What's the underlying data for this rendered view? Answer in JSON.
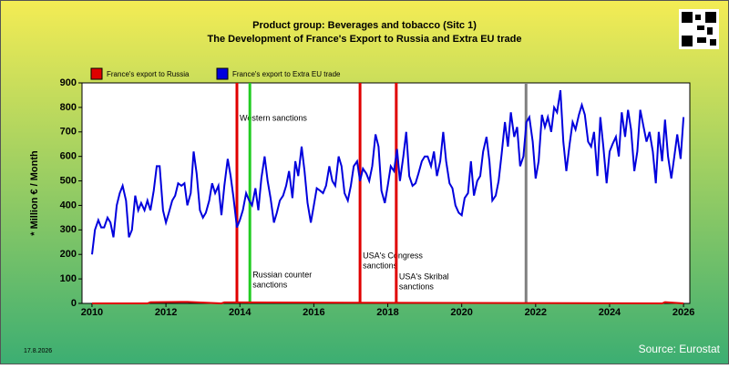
{
  "chart_data": {
    "type": "line",
    "title": "Product group: Beverages and tobacco (Sitc 1)",
    "subtitle": "The Development of France's Export to  Russia and Extra EU trade",
    "y_label": "* Million € / Month",
    "date": "17.8.2026",
    "source": "Source: Eurostat",
    "xlim": [
      2009.73,
      2026.17
    ],
    "ylim": [
      0,
      900
    ],
    "xticks": [
      2010,
      2012,
      2014,
      2016,
      2018,
      2020,
      2022,
      2024,
      2026
    ],
    "yticks": [
      0,
      100,
      200,
      300,
      400,
      500,
      600,
      700,
      800,
      900
    ],
    "events": [
      {
        "x": 2013.92,
        "color": "#e00000",
        "label": [
          "Western sanctions"
        ]
      },
      {
        "x": 2014.27,
        "color": "#22cc22",
        "label": [
          "Russian counter",
          "sanctions"
        ]
      },
      {
        "x": 2017.25,
        "color": "#e00000",
        "label": [
          "USA's Congress",
          "sanctions"
        ]
      },
      {
        "x": 2018.23,
        "color": "#e00000",
        "label": [
          "USA's Skribal",
          "sanctions"
        ]
      },
      {
        "x": 2021.74,
        "color": "#808080"
      }
    ],
    "series": [
      {
        "name": "France's export to Russia",
        "color": "#e00000",
        "x": [
          2010,
          2011.5,
          2011.58,
          2012.42,
          2012.58,
          2013.5,
          2013.58,
          2025.42,
          2025.5,
          2026
        ],
        "values": [
          0,
          0,
          5,
          6,
          6,
          0,
          4,
          0,
          5,
          0
        ]
      },
      {
        "name": "France's export to Extra EU trade",
        "color": "#0000dd",
        "x": [
          2010,
          2010.08,
          2010.17,
          2010.25,
          2010.33,
          2010.42,
          2010.5,
          2010.58,
          2010.67,
          2010.75,
          2010.83,
          2010.92,
          2011,
          2011.08,
          2011.17,
          2011.25,
          2011.33,
          2011.42,
          2011.5,
          2011.58,
          2011.67,
          2011.75,
          2011.83,
          2011.92,
          2012,
          2012.08,
          2012.17,
          2012.25,
          2012.33,
          2012.42,
          2012.5,
          2012.58,
          2012.67,
          2012.75,
          2012.83,
          2012.92,
          2013,
          2013.08,
          2013.17,
          2013.25,
          2013.33,
          2013.42,
          2013.5,
          2013.58,
          2013.67,
          2013.75,
          2013.83,
          2013.92,
          2014,
          2014.08,
          2014.17,
          2014.25,
          2014.33,
          2014.42,
          2014.5,
          2014.58,
          2014.67,
          2014.75,
          2014.83,
          2014.92,
          2015,
          2015.08,
          2015.17,
          2015.25,
          2015.33,
          2015.42,
          2015.5,
          2015.58,
          2015.67,
          2015.75,
          2015.83,
          2015.92,
          2016,
          2016.08,
          2016.17,
          2016.25,
          2016.33,
          2016.42,
          2016.5,
          2016.58,
          2016.67,
          2016.75,
          2016.83,
          2016.92,
          2017,
          2017.08,
          2017.17,
          2017.25,
          2017.33,
          2017.42,
          2017.5,
          2017.58,
          2017.67,
          2017.75,
          2017.83,
          2017.92,
          2018,
          2018.08,
          2018.17,
          2018.25,
          2018.33,
          2018.42,
          2018.5,
          2018.58,
          2018.67,
          2018.75,
          2018.83,
          2018.92,
          2019,
          2019.08,
          2019.17,
          2019.25,
          2019.33,
          2019.42,
          2019.5,
          2019.58,
          2019.67,
          2019.75,
          2019.83,
          2019.92,
          2020,
          2020.08,
          2020.17,
          2020.25,
          2020.33,
          2020.42,
          2020.5,
          2020.58,
          2020.67,
          2020.75,
          2020.83,
          2020.92,
          2021,
          2021.08,
          2021.17,
          2021.25,
          2021.33,
          2021.42,
          2021.5,
          2021.58,
          2021.67,
          2021.75,
          2021.83,
          2021.92,
          2022,
          2022.08,
          2022.17,
          2022.25,
          2022.33,
          2022.42,
          2022.5,
          2022.58,
          2022.67,
          2022.75,
          2022.83,
          2022.92,
          2023,
          2023.08,
          2023.17,
          2023.25,
          2023.33,
          2023.42,
          2023.5,
          2023.58,
          2023.67,
          2023.75,
          2023.83,
          2023.92,
          2024,
          2024.08,
          2024.17,
          2024.25,
          2024.33,
          2024.42,
          2024.5,
          2024.58,
          2024.67,
          2024.75,
          2024.83,
          2024.92,
          2025,
          2025.08,
          2025.17,
          2025.25,
          2025.33,
          2025.42,
          2025.5,
          2025.58,
          2025.67,
          2025.75,
          2025.83,
          2025.92,
          2026
        ],
        "values": [
          200,
          300,
          340,
          310,
          310,
          350,
          330,
          270,
          400,
          450,
          480,
          420,
          270,
          300,
          440,
          380,
          410,
          380,
          420,
          380,
          460,
          560,
          560,
          380,
          330,
          370,
          420,
          440,
          490,
          480,
          490,
          400,
          450,
          620,
          530,
          380,
          350,
          370,
          420,
          490,
          450,
          480,
          360,
          480,
          590,
          520,
          430,
          310,
          340,
          380,
          450,
          420,
          400,
          470,
          380,
          510,
          600,
          500,
          430,
          330,
          370,
          420,
          440,
          480,
          540,
          430,
          580,
          520,
          640,
          540,
          410,
          330,
          400,
          470,
          460,
          450,
          480,
          560,
          500,
          480,
          600,
          560,
          450,
          420,
          480,
          560,
          580,
          500,
          550,
          530,
          500,
          560,
          690,
          640,
          460,
          410,
          480,
          560,
          540,
          630,
          500,
          600,
          700,
          520,
          480,
          490,
          530,
          580,
          600,
          600,
          560,
          620,
          520,
          580,
          700,
          580,
          490,
          470,
          400,
          370,
          360,
          430,
          450,
          580,
          440,
          500,
          520,
          620,
          680,
          580,
          420,
          440,
          500,
          610,
          740,
          640,
          780,
          680,
          720,
          560,
          600,
          740,
          760,
          660,
          510,
          580,
          770,
          720,
          760,
          700,
          800,
          780,
          870,
          660,
          540,
          650,
          740,
          710,
          770,
          810,
          770,
          660,
          640,
          700,
          520,
          760,
          640,
          490,
          620,
          650,
          680,
          600,
          780,
          680,
          790,
          710,
          540,
          620,
          790,
          720,
          660,
          700,
          620,
          490,
          700,
          580,
          750,
          600,
          510,
          600,
          690,
          590,
          760
        ]
      }
    ]
  }
}
